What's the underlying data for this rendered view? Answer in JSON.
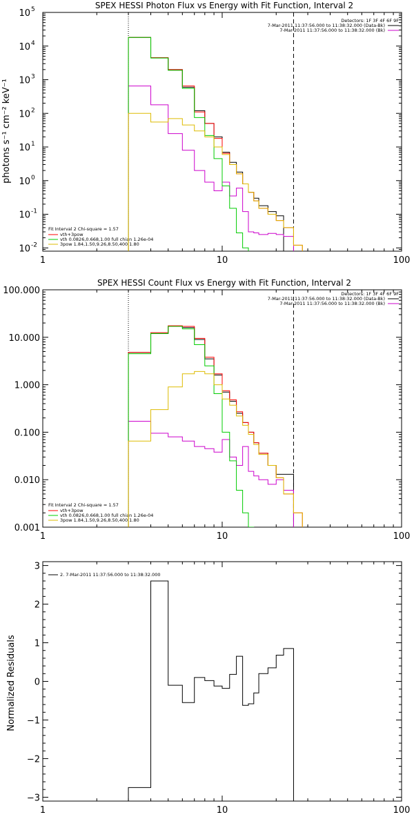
{
  "chart_data": [
    {
      "type": "line",
      "title": "SPEX HESSI Photon Flux vs Energy with Fit Function, Interval 2",
      "ylabel": "photons s⁻¹ cm⁻² keV⁻¹",
      "xlabel": "",
      "xscale": "log",
      "yscale": "log",
      "xlim": [
        1,
        100
      ],
      "ylim": [
        0.008,
        100000
      ],
      "x_ticks": [
        "1",
        "10",
        "100"
      ],
      "y_ticks": [
        {
          "value": 0.01,
          "base": "10",
          "exp": "-2"
        },
        {
          "value": 0.1,
          "base": "10",
          "exp": "-1"
        },
        {
          "value": 1,
          "base": "10",
          "exp": "0"
        },
        {
          "value": 10,
          "base": "10",
          "exp": "1"
        },
        {
          "value": 100,
          "base": "10",
          "exp": "2"
        },
        {
          "value": 1000,
          "base": "10",
          "exp": "3"
        },
        {
          "value": 10000,
          "base": "10",
          "exp": "4"
        },
        {
          "value": 100000,
          "base": "10",
          "exp": "5"
        }
      ],
      "vlines": [
        {
          "x": 3,
          "style": "dotted"
        },
        {
          "x": 25,
          "style": "dashed"
        }
      ],
      "info": [
        "Detectors: 1F 3F 4F 6F 9F",
        "7-Mar-2011 11:37:56.000 to 11:38:32.000 (Data-Bk)",
        "7-Mar-2011 11:37:56.000 to 11:38:32.000 (Bk)"
      ],
      "legend": [
        "Fit Interval  2    Chi-square = 1.57",
        "vth+3pow",
        "vth 0.0826,0.668,1.00  full chian 1.26e-04",
        "3pow 1.84,1.50,9.26,8.50,400,1.80"
      ],
      "colors": {
        "data": "#000000",
        "bk": "#cc00cc",
        "total": "#ff0000",
        "vth": "#00cc00",
        "pow": "#ddbb00"
      },
      "bin_edges": [
        3,
        4,
        5,
        6,
        7,
        8,
        9,
        10,
        11,
        12,
        13,
        14,
        15,
        16,
        18,
        20,
        22,
        25,
        28
      ],
      "series": [
        {
          "key": "data",
          "values": [
            18000,
            4500,
            2000,
            600,
            120,
            50,
            20,
            7,
            3.5,
            1.8,
            0.8,
            0.45,
            0.3,
            0.18,
            0.12,
            0.09,
            null,
            null
          ]
        },
        {
          "key": "bk",
          "values": [
            650,
            180,
            25,
            8,
            2,
            0.9,
            0.5,
            0.9,
            0.35,
            0.6,
            0.12,
            0.03,
            0.028,
            0.025,
            0.027,
            0.025,
            0.022,
            null
          ]
        },
        {
          "key": "total",
          "values": [
            18000,
            4500,
            2000,
            650,
            110,
            50,
            18,
            6.5,
            3,
            1.6,
            0.8,
            0.45,
            0.25,
            0.15,
            0.1,
            0.065,
            0.04,
            0.012
          ]
        },
        {
          "key": "vth",
          "values": [
            18000,
            4400,
            1900,
            550,
            75,
            22,
            4.5,
            0.7,
            0.15,
            0.028,
            0.01,
            0.005,
            null,
            null,
            null,
            null,
            null,
            null
          ]
        },
        {
          "key": "pow",
          "values": [
            100,
            55,
            70,
            45,
            30,
            20,
            10,
            6,
            3,
            1.6,
            0.8,
            0.45,
            0.25,
            0.15,
            0.1,
            0.065,
            0.04,
            0.012
          ]
        }
      ]
    },
    {
      "type": "line",
      "title": "SPEX HESSI Count Flux vs Energy with Fit Function, Interval 2",
      "ylabel": "",
      "xlabel": "",
      "xscale": "log",
      "yscale": "log",
      "xlim": [
        1,
        100
      ],
      "ylim": [
        0.001,
        100
      ],
      "x_ticks": [
        "1",
        "10",
        "100"
      ],
      "y_ticks": [
        {
          "value": 0.001,
          "label": "0.001"
        },
        {
          "value": 0.01,
          "label": "0.010"
        },
        {
          "value": 0.1,
          "label": "0.100"
        },
        {
          "value": 1,
          "label": "1.000"
        },
        {
          "value": 10,
          "label": "10.000"
        },
        {
          "value": 100,
          "label": "100.000"
        }
      ],
      "vlines": [
        {
          "x": 3,
          "style": "dotted"
        },
        {
          "x": 25,
          "style": "dashed"
        }
      ],
      "info": [
        "Detectors: 1F 3F 4F 6F 9F",
        "7-Mar-2011 11:37:56.000 to 11:38:32.000 (Data-Bk)",
        "7-Mar-2011 11:37:56.000 to 11:38:32.000 (Bk)"
      ],
      "legend": [
        "Fit Interval  2    Chi-square = 1.57",
        "vth+3pow",
        "vth 0.0826,0.668,1.00  full chian 1.26e-04",
        "3pow 1.84,1.50,9.26,8.50,400,1.80"
      ],
      "colors": {
        "data": "#000000",
        "bk": "#cc00cc",
        "total": "#ff0000",
        "vth": "#00cc00",
        "pow": "#ddbb00"
      },
      "bin_edges": [
        3,
        4,
        5,
        6,
        7,
        8,
        9,
        10,
        11,
        12,
        13,
        14,
        15,
        16,
        18,
        20,
        22,
        25,
        28
      ],
      "series": [
        {
          "key": "data",
          "values": [
            4.8,
            12,
            17,
            16,
            9,
            3.5,
            1.6,
            0.7,
            0.45,
            0.25,
            0.16,
            0.1,
            0.06,
            0.036,
            0.02,
            0.013,
            0.013,
            null
          ]
        },
        {
          "key": "bk",
          "values": [
            0.17,
            0.095,
            0.08,
            0.065,
            0.05,
            0.045,
            0.038,
            0.07,
            0.03,
            0.02,
            0.05,
            0.015,
            0.012,
            0.01,
            0.008,
            0.01,
            0.006,
            null
          ]
        },
        {
          "key": "total",
          "values": [
            4.8,
            12.5,
            17.5,
            17,
            9.5,
            3.8,
            1.7,
            0.75,
            0.48,
            0.27,
            0.16,
            0.1,
            0.06,
            0.036,
            0.02,
            0.011,
            0.005,
            0.002
          ]
        },
        {
          "key": "vth",
          "values": [
            4.5,
            12,
            17,
            15,
            7,
            2.5,
            0.65,
            0.1,
            0.025,
            0.006,
            0.002,
            0.001,
            0.0007,
            null,
            null,
            null,
            null,
            null
          ]
        },
        {
          "key": "pow",
          "values": [
            0.065,
            0.3,
            0.9,
            1.7,
            1.9,
            1.7,
            1.0,
            0.5,
            0.37,
            0.22,
            0.14,
            0.09,
            0.055,
            0.034,
            0.02,
            0.011,
            0.005,
            0.002
          ]
        }
      ]
    },
    {
      "type": "line",
      "title": "",
      "ylabel": "Normalized Residuals",
      "xlabel": "",
      "xscale": "log",
      "yscale": "linear",
      "xlim": [
        1,
        100
      ],
      "ylim": [
        -3.1,
        3.1
      ],
      "x_ticks": [
        "1",
        "10",
        "100"
      ],
      "y_ticks": [
        {
          "value": -3,
          "label": "−3"
        },
        {
          "value": -2,
          "label": "−2"
        },
        {
          "value": -1,
          "label": "−1"
        },
        {
          "value": 0,
          "label": "0"
        },
        {
          "value": 1,
          "label": "1"
        },
        {
          "value": 2,
          "label": "2"
        },
        {
          "value": 3,
          "label": "3"
        }
      ],
      "legend": [
        "2.  7-Mar-2011 11:37:56.000 to 11:38:32.000"
      ],
      "colors": {
        "data": "#000000"
      },
      "bin_edges": [
        3,
        4,
        5,
        6,
        7,
        8,
        9,
        10,
        11,
        12,
        13,
        14,
        15,
        16,
        18,
        20,
        22,
        25
      ],
      "series": [
        {
          "key": "data",
          "values": [
            -2.75,
            2.6,
            -0.1,
            -0.55,
            0.1,
            0.02,
            -0.12,
            -0.18,
            0.18,
            0.65,
            -0.62,
            -0.58,
            -0.3,
            0.2,
            0.35,
            0.68,
            0.85
          ]
        }
      ]
    }
  ]
}
